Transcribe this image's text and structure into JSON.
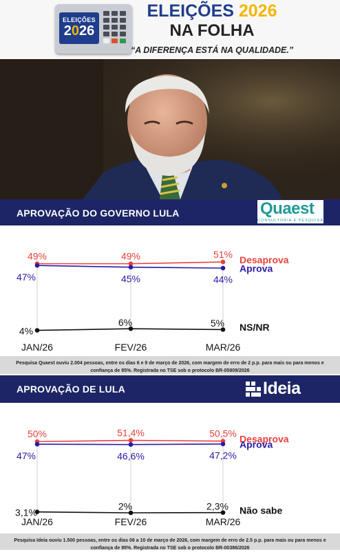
{
  "header": {
    "urna_line1": "ELEIÇÕES",
    "urna_year_a": "2",
    "urna_year_zero": "0",
    "urna_year_b": "26",
    "title_word": "ELEIÇÕES",
    "title_year": "2026",
    "subtitle": "NA FOLHA",
    "slogan": "“A DIFERENÇA ESTÁ NA QUALIDADE.”"
  },
  "colors": {
    "navy": "#1d2566",
    "blue_series": "#2a1aa8",
    "red_series": "#e8413c",
    "black_series": "#111111",
    "teal_logo": "#1f9a96",
    "gold": "#f2b705"
  },
  "icons": [
    "ballot-box-icon",
    "quaest-logo",
    "ideia-logo-icon"
  ],
  "sections": [
    {
      "title": "APROVAÇÃO DO GOVERNO LULA",
      "logo_main": "Quaest",
      "logo_sub": "CONSULTORIA E PESQUISA",
      "note": "Pesquisa Quaest ouviu 2.004 pessoas, entre os dias 6 e 9 de março de 2026, com margem de erro de 2 p.p. para mais ou para menos e confiança de 95%. Registrada no TSE sob o protocolo BR-05809/2026"
    },
    {
      "title": "APROVAÇÃO DE LULA",
      "logo_main": "Ideia",
      "note": "Pesquisa Ideia ouviu 1.500 pessoas, entre os dias 06 a 10 de março de 2026, com margem de erro de 2.5 p.p. para mais ou para menos e confiança de 95%. Registrada no TSE sob o protocolo BR-00386/2026"
    }
  ],
  "chart_data": [
    {
      "type": "line",
      "title": "APROVAÇÃO DO GOVERNO LULA",
      "categories": [
        "JAN/26",
        "FEV/26",
        "MAR/26"
      ],
      "series": [
        {
          "name": "Desaprova",
          "values": [
            49,
            49,
            51
          ],
          "labels": [
            "49%",
            "49%",
            "51%"
          ],
          "color": "#e8413c"
        },
        {
          "name": "Aprova",
          "values": [
            47,
            45,
            44
          ],
          "labels": [
            "47%",
            "45%",
            "44%"
          ],
          "color": "#2a1aa8"
        },
        {
          "name": "NS/NR",
          "values": [
            4,
            6,
            5
          ],
          "labels": [
            "4%",
            "6%",
            "5%"
          ],
          "color": "#111111"
        }
      ],
      "grid": "vertical lines at categories",
      "legend": "right"
    },
    {
      "type": "line",
      "title": "APROVAÇÃO DE LULA",
      "categories": [
        "JAN/26",
        "FEV/26",
        "MAR/26"
      ],
      "series": [
        {
          "name": "Desaprova",
          "values": [
            50,
            51.4,
            50.5
          ],
          "labels": [
            "50%",
            "51,4%",
            "50,5%"
          ],
          "color": "#e8413c"
        },
        {
          "name": "Aprova",
          "values": [
            47,
            46.6,
            47.2
          ],
          "labels": [
            "47%",
            "46,6%",
            "47,2%"
          ],
          "color": "#2a1aa8"
        },
        {
          "name": "Não sabe",
          "values": [
            3.1,
            2,
            2.3
          ],
          "labels": [
            "3,1%",
            "2%",
            "2,3%"
          ],
          "color": "#111111"
        }
      ],
      "grid": "vertical lines at categories",
      "legend": "right"
    }
  ]
}
